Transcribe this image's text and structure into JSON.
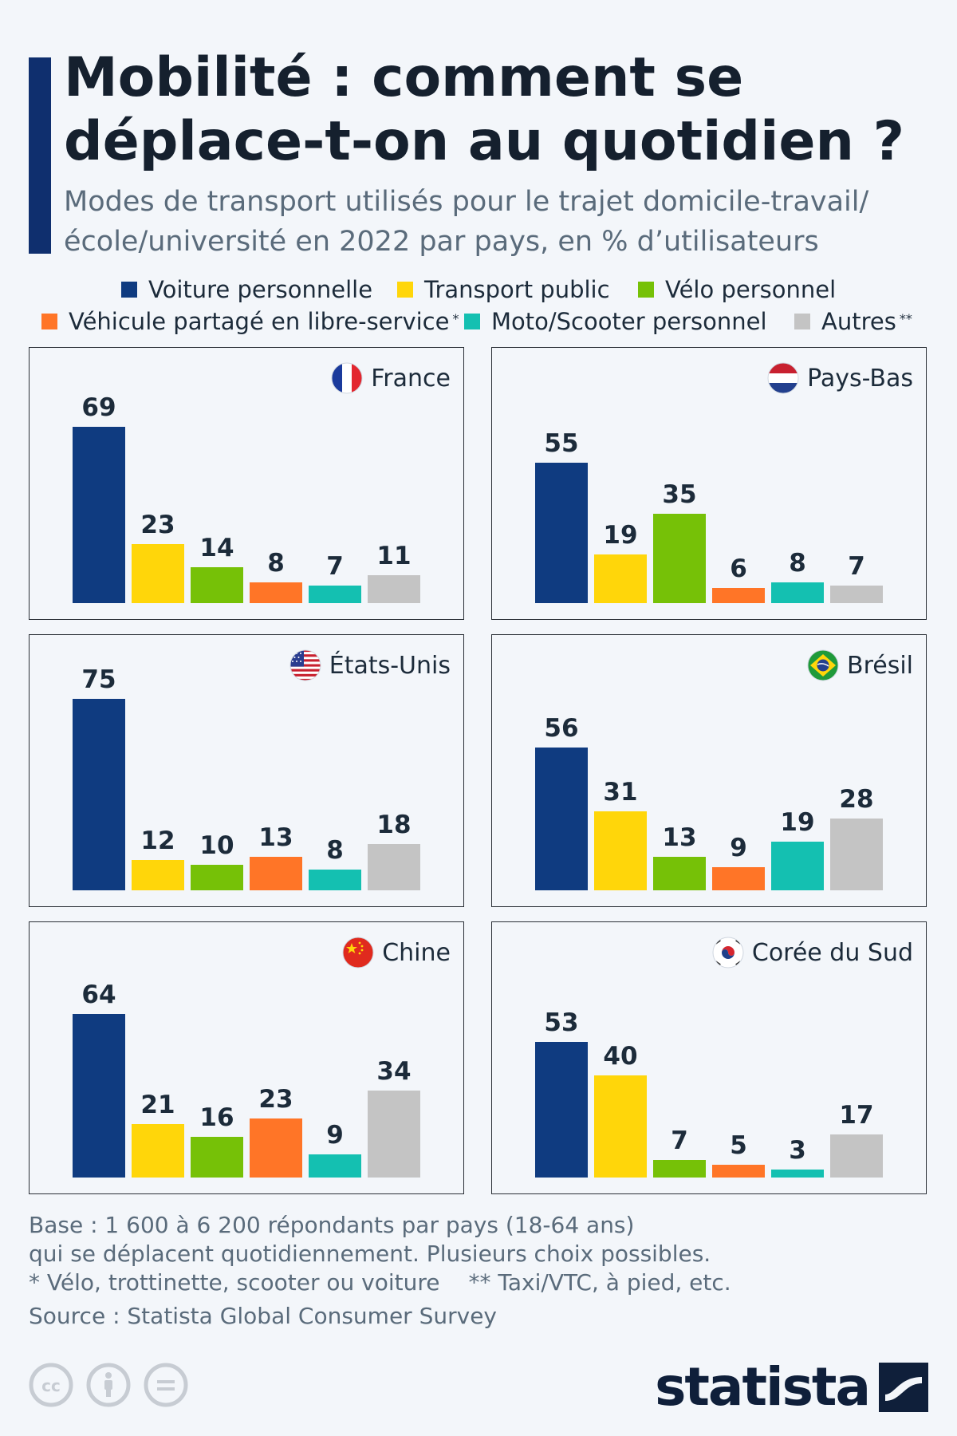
{
  "title": "Mobilité : comment se déplace-t-on au quotidien ?",
  "subtitle": "Modes de transport utilisés pour le trajet domicile-travail/ école/université en 2022 par pays, en % d’utilisateurs",
  "legend": [
    {
      "label": "Voiture personnelle",
      "mark": "",
      "color": "#0f3b80"
    },
    {
      "label": "Transport public",
      "mark": "",
      "color": "#ffd60a"
    },
    {
      "label": "Vélo personnel",
      "mark": "",
      "color": "#76c107"
    },
    {
      "label": "Véhicule partagé en libre-service",
      "mark": "*",
      "color": "#ff7527"
    },
    {
      "label": "Moto/Scooter personnel",
      "mark": "",
      "color": "#14c0b1"
    },
    {
      "label": "Autres",
      "mark": "**",
      "color": "#c4c4c4"
    }
  ],
  "chart_data": {
    "type": "bar",
    "series_names": [
      "Voiture personnelle",
      "Transport public",
      "Vélo personnel",
      "Véhicule partagé en libre-service",
      "Moto/Scooter personnel",
      "Autres"
    ],
    "colors": [
      "#0f3b80",
      "#ffd60a",
      "#76c107",
      "#ff7527",
      "#14c0b1",
      "#c4c4c4"
    ],
    "unit": "%",
    "ylim": [
      0,
      80
    ],
    "panels": [
      {
        "country": "France",
        "flag": "france-flag-icon",
        "values": [
          69,
          23,
          14,
          8,
          7,
          11
        ]
      },
      {
        "country": "Pays-Bas",
        "flag": "netherlands-flag-icon",
        "values": [
          55,
          19,
          35,
          6,
          8,
          7
        ]
      },
      {
        "country": "États-Unis",
        "flag": "usa-flag-icon",
        "values": [
          75,
          12,
          10,
          13,
          8,
          18
        ]
      },
      {
        "country": "Brésil",
        "flag": "brazil-flag-icon",
        "values": [
          56,
          31,
          13,
          9,
          19,
          28
        ]
      },
      {
        "country": "Chine",
        "flag": "china-flag-icon",
        "values": [
          64,
          21,
          16,
          23,
          9,
          34
        ]
      },
      {
        "country": "Corée du Sud",
        "flag": "south-korea-flag-icon",
        "values": [
          53,
          40,
          7,
          5,
          3,
          17
        ]
      }
    ]
  },
  "footnotes": {
    "base_line1": "Base : 1 600 à 6 200 répondants par pays (18-64 ans)",
    "base_line2": "qui se déplacent quotidiennement. Plusieurs choix possibles.",
    "note1": "* Vélo, trottinette, scooter ou voiture",
    "note2": "** Taxi/VTC, à pied, etc.",
    "source": "Source : Statista Global Consumer Survey"
  },
  "brand": "statista",
  "icons": [
    "cc-icon",
    "by-icon",
    "nd-icon",
    "statista-logo-icon"
  ]
}
